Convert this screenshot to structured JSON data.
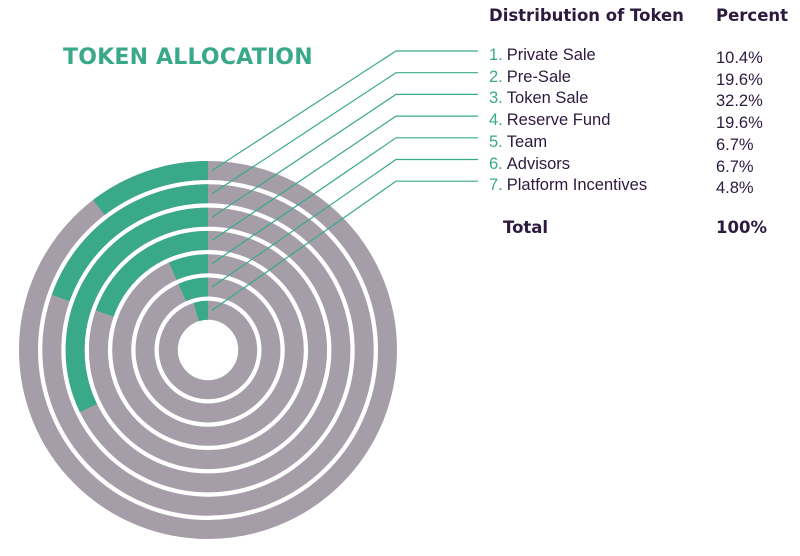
{
  "title": "TOKEN ALLOCATION",
  "colors": {
    "accent": "#3aa98a",
    "ring": "#a59ea8",
    "text": "#2c1a3f",
    "leader": "#3aa98a"
  },
  "table": {
    "header_name": "Distribution of Token",
    "header_percent": "Percent",
    "total_label": "Total",
    "total_value": "100%"
  },
  "chart_data": {
    "type": "radial-bar",
    "title": "TOKEN ALLOCATION",
    "series": [
      {
        "index": "1.",
        "name": "Private Sale",
        "percent_label": "10.4%",
        "value": 10.4
      },
      {
        "index": "2.",
        "name": "Pre-Sale",
        "percent_label": "19.6%",
        "value": 19.6
      },
      {
        "index": "3.",
        "name": "Token Sale",
        "percent_label": "32.2%",
        "value": 32.2
      },
      {
        "index": "4.",
        "name": "Reserve Fund",
        "percent_label": "19.6%",
        "value": 19.6
      },
      {
        "index": "5.",
        "name": "Team",
        "percent_label": "6.7%",
        "value": 6.7
      },
      {
        "index": "6.",
        "name": "Advisors",
        "percent_label": "6.7%",
        "value": 6.7
      },
      {
        "index": "7.",
        "name": "Platform Incentives",
        "percent_label": "4.8%",
        "value": 4.8
      }
    ],
    "legend": "right"
  }
}
